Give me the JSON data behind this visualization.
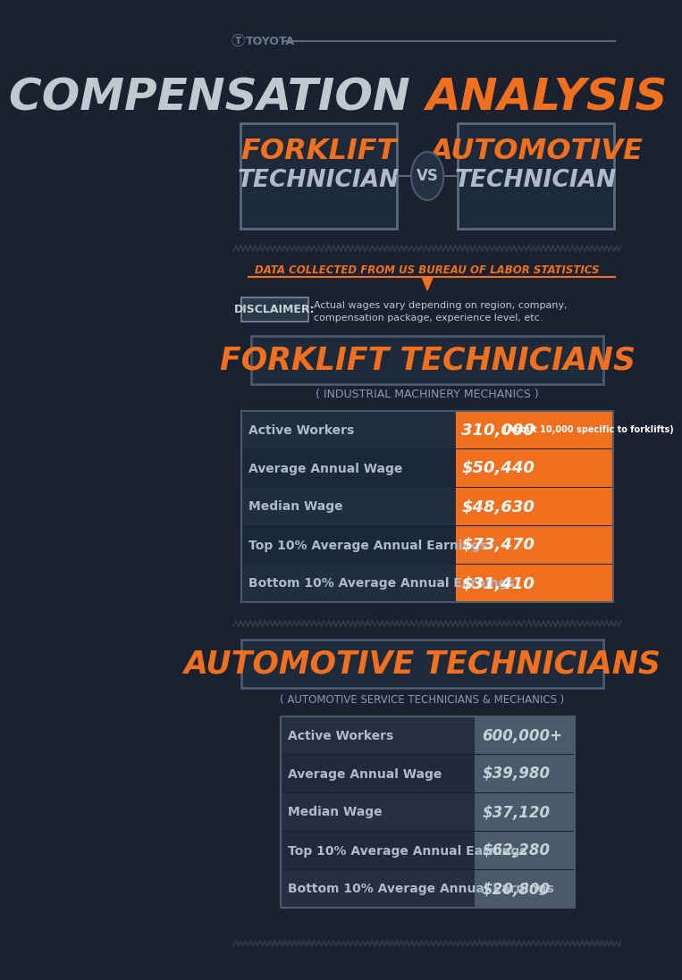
{
  "bg_color": "#1a2130",
  "orange": "#f07020",
  "gray_text": "#8a9ab0",
  "white": "#ffffff",
  "dark_gray": "#2a3545",
  "mid_gray": "#3a4555",
  "toyota_text": "TOYOTA",
  "title_white": "COMPENSATION ",
  "title_orange": "ANALYSIS",
  "left_box_line1": "FORKLIFT",
  "left_box_line2": "TECHNICIAN",
  "vs_text": "VS",
  "right_box_line1": "AUTOMOTIVE",
  "right_box_line2": "TECHNICIAN",
  "data_source": "DATA COLLECTED FROM US BUREAU OF LABOR STATISTICS",
  "disclaimer_label": "DISCLAIMER:",
  "disclaimer_text1": "Actual wages vary depending on region, company,",
  "disclaimer_text2": "compensation package, experience level, etc.",
  "forklift_title": "FORKLIFT TECHNICIANS",
  "forklift_subtitle": "( INDUSTRIAL MACHINERY MECHANICS )",
  "forklift_rows": [
    [
      "Active Workers",
      "310,000",
      " (About 10,000 specific to forklifts)"
    ],
    [
      "Average Annual Wage",
      "$50,440",
      ""
    ],
    [
      "Median Wage",
      "$48,630",
      ""
    ],
    [
      "Top 10% Average Annual Earnings",
      "$73,470",
      ""
    ],
    [
      "Bottom 10% Average Annual Earnings",
      "$31,410",
      ""
    ]
  ],
  "auto_title": "AUTOMOTIVE TECHNICIANS",
  "auto_subtitle": "( AUTOMOTIVE SERVICE TECHNICIANS & MECHANICS )",
  "auto_rows": [
    [
      "Active Workers",
      "600,000+",
      ""
    ],
    [
      "Average Annual Wage",
      "$39,980",
      ""
    ],
    [
      "Median Wage",
      "$37,120",
      ""
    ],
    [
      "Top 10% Average Annual Earnings",
      "$62,280",
      ""
    ],
    [
      "Bottom 10% Average Annual Earnings",
      "$20,800",
      ""
    ]
  ]
}
